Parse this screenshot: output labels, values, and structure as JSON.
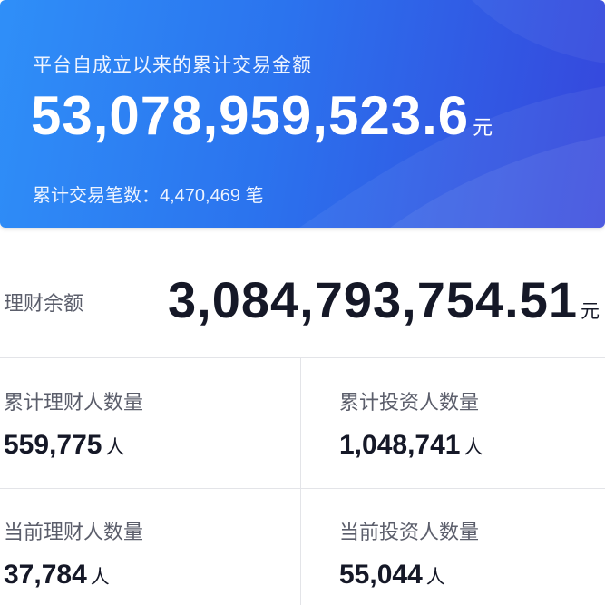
{
  "banner": {
    "title": "平台自成立以来的累计交易金额",
    "amount": "53,078,959,523.6",
    "amount_unit": "元",
    "count_label": "累计交易笔数：",
    "count_value": "4,470,469",
    "count_unit": "笔"
  },
  "balance": {
    "label": "理财余额",
    "value": "3,084,793,754.51",
    "unit": "元"
  },
  "stats": [
    {
      "label": "累计理财人数量",
      "value": "559,775",
      "unit": "人"
    },
    {
      "label": "累计投资人数量",
      "value": "1,048,741",
      "unit": "人"
    },
    {
      "label": "当前理财人数量",
      "value": "37,784",
      "unit": "人"
    },
    {
      "label": "当前投资人数量",
      "value": "55,044",
      "unit": "人"
    }
  ],
  "colors": {
    "banner_start": "#2f8ff8",
    "banner_end": "#3646dc",
    "value_text": "#151827",
    "label_text": "#5b5e6b"
  }
}
